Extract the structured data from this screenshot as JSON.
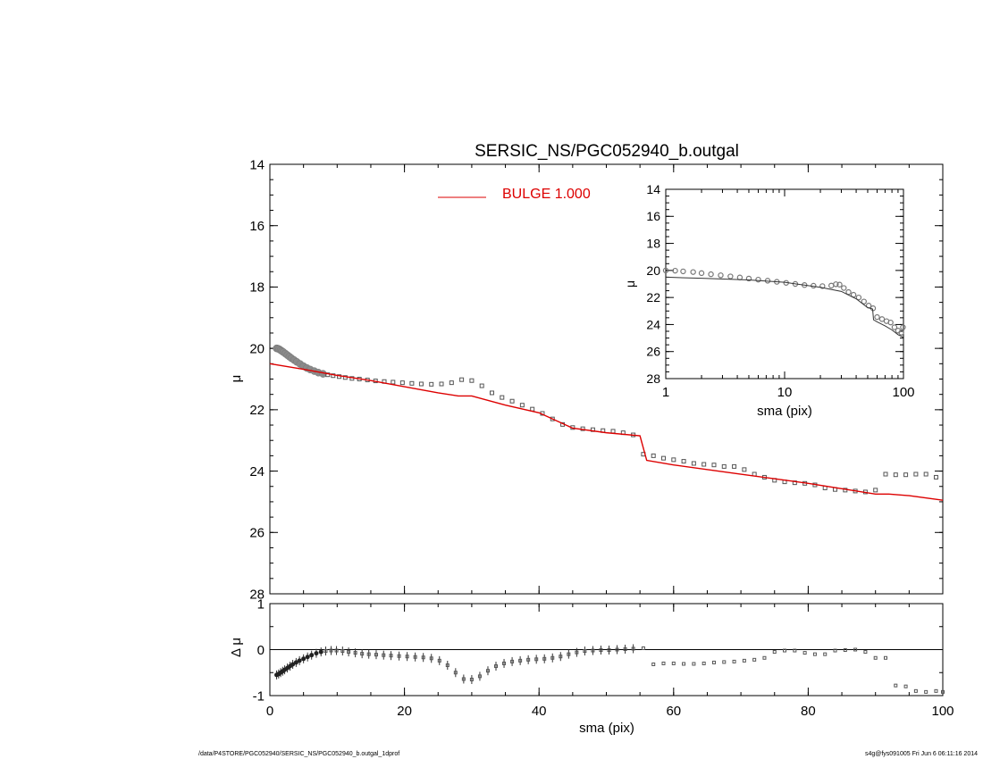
{
  "title": "SERSIC_NS/PGC052940_b.outgal",
  "footer": {
    "left": "/data/P4STORE/PGC052940/SERSIC_NS/PGC052940_b.outgal_1dprof",
    "right": "s4g@fys091005  Fri Jun  6 06:11:16 2014"
  },
  "colors": {
    "model": "#dd0000",
    "data": "#555555",
    "axis": "#000000"
  },
  "chart_data": [
    {
      "id": "main",
      "type": "scatter",
      "xlabel": "",
      "ylabel": "μ",
      "xlim": [
        0,
        100
      ],
      "ylim": [
        28,
        14
      ],
      "yticks": [
        "14",
        "16",
        "18",
        "20",
        "22",
        "24",
        "26",
        "28"
      ],
      "legend": {
        "label": "BULGE  1.000",
        "position": "top-center"
      },
      "series": [
        {
          "kind": "data_points",
          "x": [
            1.0,
            1.2,
            1.4,
            1.6,
            1.8,
            2.0,
            2.3,
            2.6,
            2.9,
            3.2,
            3.6,
            4.0,
            4.5,
            5.0,
            5.5,
            6.0,
            6.6,
            7.2,
            7.9,
            8.6,
            9.4,
            10.3,
            11.2,
            12.2,
            13.3,
            14.5,
            15.7,
            17.0,
            18.3,
            19.7,
            21.1,
            22.5,
            24.0,
            25.5,
            27.0,
            28.5,
            30.0,
            31.5,
            33.0,
            34.5,
            36.0,
            37.5,
            39.0,
            40.5,
            42.0,
            43.5,
            45.0,
            46.5,
            48.0,
            49.5,
            51.0,
            52.5,
            54.0,
            55.5,
            57.0,
            58.5,
            60.0,
            61.5,
            63.0,
            64.5,
            66.0,
            67.5,
            69.0,
            70.5,
            72.0,
            73.5,
            75.0,
            76.5,
            78.0,
            79.5,
            81.0,
            82.5,
            84.0,
            85.5,
            87.0,
            88.5,
            90.0,
            91.5,
            93.0,
            94.5,
            96.0,
            97.5,
            99.0
          ],
          "y": [
            20.0,
            20.01,
            20.03,
            20.06,
            20.09,
            20.12,
            20.17,
            20.22,
            20.27,
            20.32,
            20.38,
            20.44,
            20.51,
            20.58,
            20.64,
            20.69,
            20.74,
            20.79,
            20.83,
            20.86,
            20.89,
            20.92,
            20.95,
            20.98,
            21.0,
            21.03,
            21.06,
            21.08,
            21.1,
            21.12,
            21.14,
            21.16,
            21.17,
            21.16,
            21.12,
            21.02,
            21.05,
            21.22,
            21.45,
            21.6,
            21.72,
            21.85,
            21.98,
            22.12,
            22.3,
            22.48,
            22.58,
            22.62,
            22.65,
            22.68,
            22.7,
            22.75,
            22.82,
            23.45,
            23.5,
            23.58,
            23.63,
            23.68,
            23.75,
            23.78,
            23.8,
            23.85,
            23.85,
            23.95,
            24.1,
            24.2,
            24.3,
            24.35,
            24.38,
            24.4,
            24.45,
            24.55,
            24.6,
            24.62,
            24.65,
            24.68,
            24.62,
            24.1,
            24.12,
            24.12,
            24.1,
            24.1,
            24.2
          ]
        },
        {
          "kind": "model",
          "name": "BULGE  1.000",
          "x": [
            0,
            5,
            10,
            15,
            20,
            25,
            28,
            30,
            35,
            40,
            45,
            50,
            55,
            56,
            60,
            70,
            80,
            90,
            92,
            95,
            100
          ],
          "y": [
            20.5,
            20.68,
            20.88,
            21.05,
            21.25,
            21.45,
            21.55,
            21.55,
            21.85,
            22.1,
            22.6,
            22.75,
            22.85,
            23.65,
            23.8,
            24.1,
            24.4,
            24.75,
            24.75,
            24.8,
            24.95
          ]
        }
      ]
    },
    {
      "id": "residual",
      "type": "scatter",
      "xlabel": "sma (pix)",
      "ylabel": "Δ μ",
      "xlim": [
        0,
        100
      ],
      "ylim": [
        -1,
        1
      ],
      "xticks": [
        "0",
        "20",
        "40",
        "60",
        "80",
        "100"
      ],
      "yticks": [
        "-1",
        "0",
        "1"
      ],
      "series": [
        {
          "kind": "residual_points",
          "x": [
            1.0,
            1.3,
            1.6,
            1.9,
            2.2,
            2.6,
            3.0,
            3.4,
            3.9,
            4.4,
            5.0,
            5.6,
            6.2,
            6.9,
            7.6,
            8.3,
            9.1,
            9.9,
            10.8,
            11.7,
            12.7,
            13.7,
            14.7,
            15.8,
            16.9,
            18.0,
            19.2,
            20.4,
            21.6,
            22.8,
            24.0,
            25.2,
            26.4,
            27.6,
            28.8,
            30.0,
            31.2,
            32.4,
            33.6,
            34.8,
            36.0,
            37.2,
            38.4,
            39.6,
            40.8,
            42.0,
            43.2,
            44.4,
            45.6,
            46.8,
            48.0,
            49.2,
            50.4,
            51.6,
            52.8,
            54.0,
            55.5,
            57.0,
            58.5,
            60.0,
            61.5,
            63.0,
            64.5,
            66.0,
            67.5,
            69.0,
            70.5,
            72.0,
            73.5,
            75.0,
            76.5,
            78.0,
            79.5,
            81.0,
            82.5,
            84.0,
            85.5,
            87.0,
            88.5,
            90.0,
            91.5,
            93.0,
            94.5,
            96.0,
            97.5,
            99.0,
            100.0
          ],
          "y": [
            -0.55,
            -0.53,
            -0.5,
            -0.47,
            -0.44,
            -0.4,
            -0.36,
            -0.32,
            -0.28,
            -0.24,
            -0.2,
            -0.16,
            -0.12,
            -0.08,
            -0.05,
            -0.03,
            -0.02,
            -0.02,
            -0.03,
            -0.05,
            -0.07,
            -0.09,
            -0.1,
            -0.11,
            -0.12,
            -0.13,
            -0.14,
            -0.15,
            -0.16,
            -0.17,
            -0.19,
            -0.24,
            -0.34,
            -0.5,
            -0.64,
            -0.65,
            -0.58,
            -0.46,
            -0.36,
            -0.3,
            -0.26,
            -0.24,
            -0.22,
            -0.21,
            -0.2,
            -0.18,
            -0.15,
            -0.1,
            -0.06,
            -0.03,
            -0.02,
            -0.01,
            -0.01,
            0.0,
            0.01,
            0.02,
            0.03,
            -0.32,
            -0.3,
            -0.3,
            -0.31,
            -0.31,
            -0.3,
            -0.28,
            -0.27,
            -0.26,
            -0.24,
            -0.22,
            -0.18,
            -0.05,
            -0.02,
            -0.02,
            -0.07,
            -0.1,
            -0.1,
            -0.02,
            -0.01,
            0.0,
            -0.05,
            -0.18,
            -0.18,
            -0.78,
            -0.8,
            -0.9,
            -0.92,
            -0.9,
            -0.92
          ]
        }
      ]
    },
    {
      "id": "inset",
      "type": "scatter",
      "xscale": "log",
      "xlabel": "sma (pix)",
      "ylabel": "μ",
      "xlim": [
        1,
        100
      ],
      "ylim": [
        28,
        14
      ],
      "xticks": [
        "1",
        "10",
        "100"
      ],
      "yticks": [
        "14",
        "16",
        "18",
        "20",
        "22",
        "24",
        "26",
        "28"
      ],
      "series": [
        {
          "kind": "data_points",
          "x": [
            1.0,
            1.2,
            1.4,
            1.7,
            2.0,
            2.4,
            2.9,
            3.5,
            4.2,
            5.0,
            6.0,
            7.2,
            8.6,
            10.3,
            12.3,
            14.7,
            17.5,
            20.8,
            24.7,
            27.0,
            29.0,
            31.5,
            34.5,
            38.0,
            42.0,
            46.5,
            51.0,
            55.5,
            60.0,
            66.0,
            72.0,
            78.0,
            84.0,
            90.0,
            96.0,
            99.0
          ],
          "y": [
            20.0,
            20.02,
            20.07,
            20.12,
            20.2,
            20.28,
            20.36,
            20.44,
            20.52,
            20.6,
            20.68,
            20.76,
            20.84,
            20.92,
            21.0,
            21.08,
            21.13,
            21.16,
            21.12,
            21.02,
            21.05,
            21.3,
            21.6,
            21.8,
            22.0,
            22.3,
            22.6,
            22.8,
            23.45,
            23.6,
            23.75,
            23.85,
            24.2,
            24.45,
            24.6,
            24.2
          ]
        },
        {
          "kind": "model",
          "x": [
            1,
            2,
            5,
            10,
            20,
            30,
            40,
            50,
            55,
            56,
            60,
            70,
            80,
            90,
            100
          ],
          "y": [
            20.5,
            20.58,
            20.7,
            20.88,
            21.25,
            21.55,
            22.1,
            22.75,
            22.85,
            23.65,
            23.8,
            24.1,
            24.4,
            24.75,
            24.95
          ]
        }
      ]
    }
  ]
}
